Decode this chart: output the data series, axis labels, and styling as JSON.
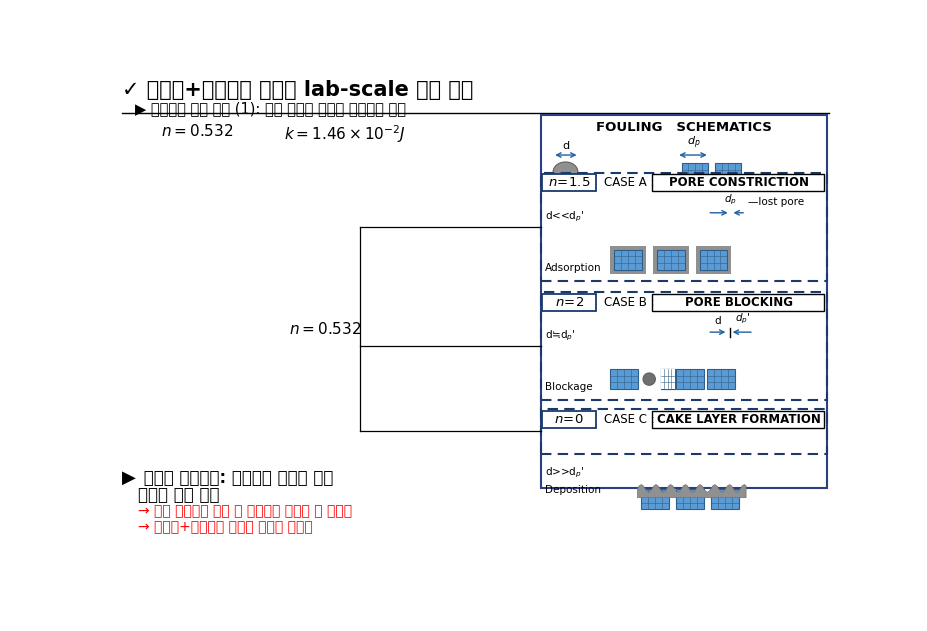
{
  "bg": "#ffffff",
  "title_check": "✓",
  "title_text": " 카오린+수돷물을 이용한 lab-scale 실험 결과",
  "subtitle_arrow": "▶",
  "subtitle_text": " 파라미터 산정 결과 (1): 실험 데이터 전체를 모델링에 사용",
  "n_top": "n = 0.532",
  "k_top": "k = 1.46 \\times 10^{-2} J",
  "n_mid": "n = 0.532",
  "fouling_title": "FOULING   SCHEMATICS",
  "case_a_n": "n =1.5",
  "case_a_label": "CASE A : ",
  "case_a_box": "PORE CONSTRICTION",
  "case_b_n": "n = 2",
  "case_b_label": "CASE B : ",
  "case_b_box": "PORE BLOCKING",
  "case_c_n": "n = 0",
  "case_c_label": "CASE C : ",
  "case_c_box": "CAKE LAYER FORMATION",
  "conc_arrow": "▶",
  "conc_bold1": " 파울링 메커니즘: 케이크층 형성과 공극",
  "conc_bold2": "축소의 중간 단계",
  "conc_red1": "→ 현도 플랜트와 비교 시 케이크층 형성에 더 가까움",
  "conc_red2": "→ 카오린+수돷물의 특성상 타당한 결과임",
  "dark_blue": "#1a3a6b",
  "mid_blue": "#2060a0",
  "block_blue": "#5b9bd5",
  "block_edge": "#2e5f8a",
  "gray_coat": "#909090",
  "gray_part": "#808080"
}
